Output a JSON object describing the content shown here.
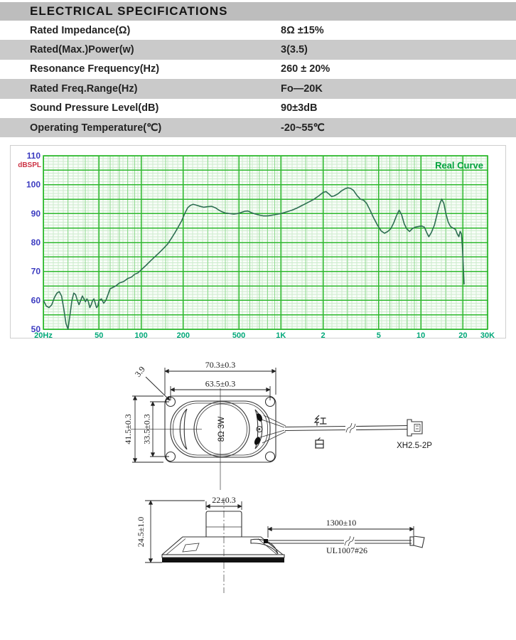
{
  "spec_table": {
    "title": "ELECTRICAL SPECIFICATIONS",
    "rows": [
      {
        "label": "Rated Impedance(Ω)",
        "value": "8Ω ±15%"
      },
      {
        "label": "Rated(Max.)Power(w)",
        "value": "3(3.5)"
      },
      {
        "label": "Resonance Frequency(Hz)",
        "value": "260 ± 20%"
      },
      {
        "label": "Rated Freq.Range(Hz)",
        "value": "Fo—20K"
      },
      {
        "label": "Sound Pressure Level(dB)",
        "value": "90±3dB"
      },
      {
        "label": "Operating Temperature(℃)",
        "value": "-20~55℃"
      }
    ]
  },
  "chart_data": {
    "type": "line",
    "title": "Real Curve",
    "ylabel": "dBSPL",
    "x_scale": "log",
    "xlim": [
      20,
      30000
    ],
    "ylim": [
      50,
      110
    ],
    "grid": true,
    "legend_position": "top-right",
    "x_tick_values": [
      20,
      50,
      100,
      200,
      500,
      1000,
      2000,
      5000,
      10000,
      20000,
      30000
    ],
    "x_tick_labels": [
      "20Hz",
      "50",
      "100",
      "200",
      "500",
      "1K",
      "2",
      "5",
      "10",
      "20",
      "30K"
    ],
    "y_ticks": [
      50,
      60,
      70,
      80,
      90,
      100,
      110
    ],
    "colors": {
      "curve": "#2e6e52",
      "major_grid": "#2db82d",
      "minor_grid": "#cdeccd",
      "log_minor_grid": "#8fd98f",
      "plot_bg": "#f8fdf8",
      "y_label": "#3b3bc0",
      "ylabel_red": "#cc3344",
      "x_label": "#00a878",
      "title_green": "#00a23c"
    },
    "series": [
      {
        "name": "Real Curve",
        "points": [
          [
            20,
            60
          ],
          [
            21,
            58
          ],
          [
            22,
            57.5
          ],
          [
            23,
            58.5
          ],
          [
            24,
            61
          ],
          [
            25,
            62.5
          ],
          [
            26,
            63
          ],
          [
            27,
            61.5
          ],
          [
            28,
            57
          ],
          [
            29,
            52
          ],
          [
            30,
            50
          ],
          [
            31,
            55
          ],
          [
            32,
            60
          ],
          [
            33,
            62.5
          ],
          [
            34,
            62
          ],
          [
            35,
            60
          ],
          [
            36,
            58.5
          ],
          [
            37,
            60
          ],
          [
            38,
            61.5
          ],
          [
            39,
            60.5
          ],
          [
            40,
            59.5
          ],
          [
            41,
            60.5
          ],
          [
            42,
            59.5
          ],
          [
            43,
            57.5
          ],
          [
            44,
            58.5
          ],
          [
            45,
            60
          ],
          [
            46,
            60.5
          ],
          [
            47,
            59
          ],
          [
            48,
            57.5
          ],
          [
            49,
            58
          ],
          [
            50,
            60
          ],
          [
            52,
            60.5
          ],
          [
            54,
            59
          ],
          [
            56,
            60
          ],
          [
            58,
            62
          ],
          [
            60,
            64
          ],
          [
            63,
            64.5
          ],
          [
            66,
            65
          ],
          [
            70,
            66
          ],
          [
            75,
            66.5
          ],
          [
            80,
            67.5
          ],
          [
            85,
            68
          ],
          [
            90,
            69
          ],
          [
            95,
            69.5
          ],
          [
            100,
            70.5
          ],
          [
            108,
            72
          ],
          [
            116,
            73.5
          ],
          [
            125,
            75
          ],
          [
            135,
            76.5
          ],
          [
            145,
            78
          ],
          [
            155,
            79.5
          ],
          [
            165,
            81.5
          ],
          [
            175,
            83.5
          ],
          [
            185,
            85.5
          ],
          [
            195,
            87.5
          ],
          [
            205,
            90
          ],
          [
            215,
            92
          ],
          [
            225,
            92.8
          ],
          [
            235,
            93.2
          ],
          [
            245,
            93
          ],
          [
            260,
            92.6
          ],
          [
            280,
            92.2
          ],
          [
            300,
            92.4
          ],
          [
            320,
            92.5
          ],
          [
            340,
            92
          ],
          [
            360,
            91.2
          ],
          [
            380,
            90.6
          ],
          [
            400,
            90.2
          ],
          [
            430,
            90
          ],
          [
            460,
            89.8
          ],
          [
            490,
            90
          ],
          [
            520,
            90.4
          ],
          [
            550,
            90.8
          ],
          [
            580,
            90.9
          ],
          [
            610,
            90.4
          ],
          [
            650,
            89.9
          ],
          [
            700,
            89.5
          ],
          [
            750,
            89.2
          ],
          [
            800,
            89.2
          ],
          [
            850,
            89.4
          ],
          [
            900,
            89.6
          ],
          [
            950,
            89.8
          ],
          [
            1000,
            90
          ],
          [
            1100,
            90.6
          ],
          [
            1200,
            91.2
          ],
          [
            1300,
            91.9
          ],
          [
            1400,
            92.7
          ],
          [
            1550,
            93.8
          ],
          [
            1700,
            94.8
          ],
          [
            1850,
            96
          ],
          [
            2000,
            97.3
          ],
          [
            2100,
            97.6
          ],
          [
            2200,
            96.8
          ],
          [
            2300,
            95.9
          ],
          [
            2400,
            96.1
          ],
          [
            2550,
            96.8
          ],
          [
            2700,
            97.8
          ],
          [
            2850,
            98.5
          ],
          [
            3000,
            98.9
          ],
          [
            3150,
            98.7
          ],
          [
            3300,
            98
          ],
          [
            3500,
            96.2
          ],
          [
            3700,
            95
          ],
          [
            3900,
            94.6
          ],
          [
            4100,
            93.5
          ],
          [
            4300,
            91.5
          ],
          [
            4600,
            88.5
          ],
          [
            4900,
            86
          ],
          [
            5200,
            84
          ],
          [
            5500,
            83.2
          ],
          [
            5800,
            83.8
          ],
          [
            6100,
            84.8
          ],
          [
            6400,
            86.8
          ],
          [
            6700,
            89.3
          ],
          [
            7000,
            91.2
          ],
          [
            7300,
            89.5
          ],
          [
            7600,
            86.5
          ],
          [
            7900,
            84.8
          ],
          [
            8300,
            83.8
          ],
          [
            8700,
            84.8
          ],
          [
            9100,
            85.3
          ],
          [
            9600,
            85.5
          ],
          [
            10100,
            85.7
          ],
          [
            10600,
            85.3
          ],
          [
            11000,
            83.5
          ],
          [
            11400,
            82
          ],
          [
            11900,
            83.5
          ],
          [
            12500,
            86
          ],
          [
            13100,
            90
          ],
          [
            13700,
            93.5
          ],
          [
            14100,
            95
          ],
          [
            14600,
            93.5
          ],
          [
            15100,
            90
          ],
          [
            15700,
            87
          ],
          [
            16300,
            85.5
          ],
          [
            17000,
            85
          ],
          [
            17700,
            84.5
          ],
          [
            18200,
            83
          ],
          [
            18700,
            82
          ],
          [
            19100,
            83.8
          ],
          [
            19500,
            83
          ],
          [
            19800,
            79
          ],
          [
            20100,
            72
          ],
          [
            20400,
            65.5
          ]
        ]
      }
    ]
  },
  "drawings": {
    "front_view": {
      "dims": {
        "outer_width": "70.3±0.3",
        "hole_spacing": "63.5±0.3",
        "outer_height": "41.5±0.3",
        "inner_height": "33.5±0.3",
        "hole_diameter": "3.9"
      },
      "cone_marking": "8Ω 3W",
      "wire_labels": {
        "red": "红",
        "white": "白"
      },
      "connector_label": "XH2.5-2P"
    },
    "side_view": {
      "dims": {
        "total_height": "24.5±1.0",
        "magnet_width": "22±0.3",
        "wire_length": "1300±10"
      },
      "wire_spec": "UL1007#26"
    }
  }
}
